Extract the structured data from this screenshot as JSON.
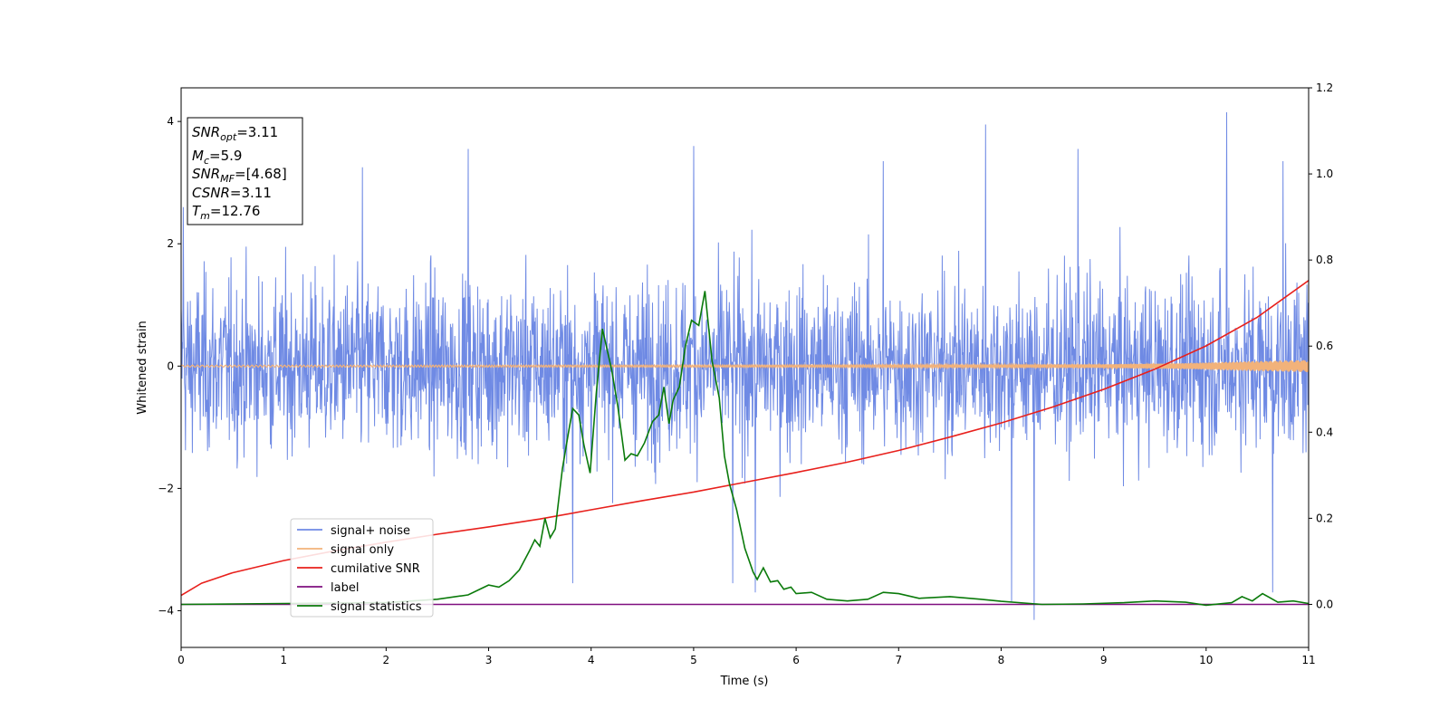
{
  "chart_data": {
    "type": "line",
    "xlabel": "Time (s)",
    "ylabel": "Whitened strain",
    "xlim": [
      0,
      11
    ],
    "ylim": [
      -4.6,
      4.55
    ],
    "y2lim": [
      -0.1,
      1.2
    ],
    "x_ticks": [
      "0",
      "1",
      "2",
      "3",
      "4",
      "5",
      "6",
      "7",
      "8",
      "9",
      "10",
      "11"
    ],
    "y_ticks": [
      "−4",
      "−2",
      "0",
      "2",
      "4"
    ],
    "y2_ticks": [
      "0.0",
      "0.2",
      "0.4",
      "0.6",
      "0.8",
      "1.0",
      "1.2"
    ],
    "grid": false,
    "legend_position": "lower-left",
    "annotation": {
      "lines": [
        {
          "sym": "SNR",
          "sub": "opt",
          "value": "=3.11"
        },
        {
          "sym": "M",
          "sub": "c",
          "value": "=5.9"
        },
        {
          "sym": "SNR",
          "sub": "MF",
          "value": "=[4.68]"
        },
        {
          "sym": "CSNR",
          "sub": "",
          "value": "=3.11"
        },
        {
          "sym": "T",
          "sub": "m",
          "value": "=12.76"
        }
      ]
    },
    "series": [
      {
        "name": "signal+ noise",
        "color": "#6f8ae4",
        "axis": "left",
        "kind": "noise",
        "typical_range": [
          -2.0,
          2.0
        ],
        "peaks": [
          {
            "x": 0.02,
            "y": 2.6
          },
          {
            "x": 1.77,
            "y": 3.25
          },
          {
            "x": 2.8,
            "y": 3.55
          },
          {
            "x": 5.0,
            "y": 3.6
          },
          {
            "x": 6.85,
            "y": 3.35
          },
          {
            "x": 7.85,
            "y": 3.95
          },
          {
            "x": 8.75,
            "y": 3.55
          },
          {
            "x": 10.2,
            "y": 4.15
          },
          {
            "x": 10.75,
            "y": 3.35
          },
          {
            "x": 3.82,
            "y": -3.55
          },
          {
            "x": 5.38,
            "y": -3.55
          },
          {
            "x": 5.6,
            "y": -3.7
          },
          {
            "x": 8.1,
            "y": -3.85
          },
          {
            "x": 8.32,
            "y": -4.15
          },
          {
            "x": 10.65,
            "y": -3.7
          }
        ]
      },
      {
        "name": "signal only",
        "color": "#f2b27a",
        "axis": "left",
        "kind": "chirp",
        "envelope": [
          [
            0,
            0.015
          ],
          [
            6,
            0.02
          ],
          [
            9,
            0.03
          ],
          [
            9.8,
            0.05
          ],
          [
            10.4,
            0.08
          ],
          [
            11,
            0.1
          ]
        ]
      },
      {
        "name": "cumilative SNR",
        "color": "#e8201c",
        "axis": "left",
        "kind": "line",
        "points": [
          [
            0,
            -3.75
          ],
          [
            0.2,
            -3.55
          ],
          [
            0.5,
            -3.38
          ],
          [
            1,
            -3.18
          ],
          [
            1.5,
            -3.02
          ],
          [
            2,
            -2.88
          ],
          [
            2.5,
            -2.75
          ],
          [
            3,
            -2.63
          ],
          [
            3.5,
            -2.5
          ],
          [
            4,
            -2.35
          ],
          [
            4.5,
            -2.2
          ],
          [
            5,
            -2.06
          ],
          [
            5.5,
            -1.9
          ],
          [
            6,
            -1.74
          ],
          [
            6.5,
            -1.57
          ],
          [
            7,
            -1.38
          ],
          [
            7.5,
            -1.16
          ],
          [
            8,
            -0.93
          ],
          [
            8.5,
            -0.67
          ],
          [
            9,
            -0.38
          ],
          [
            9.5,
            -0.05
          ],
          [
            10,
            0.33
          ],
          [
            10.5,
            0.8
          ],
          [
            11,
            1.4
          ]
        ]
      },
      {
        "name": "label",
        "color": "#7f0f7f",
        "axis": "right",
        "kind": "line",
        "points": [
          [
            0,
            0.0
          ],
          [
            11,
            0.0
          ]
        ]
      },
      {
        "name": "signal statistics",
        "color": "#0a7a0a",
        "axis": "right",
        "kind": "line",
        "points": [
          [
            0,
            0.0
          ],
          [
            0.5,
            0.001
          ],
          [
            1,
            0.002
          ],
          [
            1.5,
            0.003
          ],
          [
            2,
            0.004
          ],
          [
            2.5,
            0.012
          ],
          [
            2.8,
            0.022
          ],
          [
            3.0,
            0.045
          ],
          [
            3.1,
            0.04
          ],
          [
            3.2,
            0.055
          ],
          [
            3.3,
            0.08
          ],
          [
            3.4,
            0.125
          ],
          [
            3.45,
            0.15
          ],
          [
            3.5,
            0.135
          ],
          [
            3.55,
            0.2
          ],
          [
            3.6,
            0.155
          ],
          [
            3.65,
            0.175
          ],
          [
            3.72,
            0.315
          ],
          [
            3.78,
            0.4
          ],
          [
            3.82,
            0.455
          ],
          [
            3.88,
            0.44
          ],
          [
            3.93,
            0.37
          ],
          [
            3.99,
            0.305
          ],
          [
            4.05,
            0.49
          ],
          [
            4.11,
            0.64
          ],
          [
            4.2,
            0.545
          ],
          [
            4.26,
            0.46
          ],
          [
            4.33,
            0.335
          ],
          [
            4.39,
            0.35
          ],
          [
            4.45,
            0.345
          ],
          [
            4.52,
            0.375
          ],
          [
            4.6,
            0.425
          ],
          [
            4.66,
            0.44
          ],
          [
            4.71,
            0.505
          ],
          [
            4.76,
            0.42
          ],
          [
            4.8,
            0.475
          ],
          [
            4.86,
            0.505
          ],
          [
            4.92,
            0.6
          ],
          [
            4.98,
            0.66
          ],
          [
            5.05,
            0.648
          ],
          [
            5.11,
            0.728
          ],
          [
            5.18,
            0.565
          ],
          [
            5.25,
            0.48
          ],
          [
            5.3,
            0.345
          ],
          [
            5.35,
            0.28
          ],
          [
            5.42,
            0.22
          ],
          [
            5.5,
            0.13
          ],
          [
            5.58,
            0.075
          ],
          [
            5.62,
            0.058
          ],
          [
            5.68,
            0.085
          ],
          [
            5.75,
            0.052
          ],
          [
            5.82,
            0.055
          ],
          [
            5.88,
            0.035
          ],
          [
            5.95,
            0.04
          ],
          [
            6.0,
            0.025
          ],
          [
            6.15,
            0.028
          ],
          [
            6.3,
            0.012
          ],
          [
            6.5,
            0.008
          ],
          [
            6.7,
            0.012
          ],
          [
            6.85,
            0.028
          ],
          [
            7.0,
            0.025
          ],
          [
            7.2,
            0.014
          ],
          [
            7.5,
            0.018
          ],
          [
            7.8,
            0.012
          ],
          [
            8.0,
            0.007
          ],
          [
            8.4,
            0.0
          ],
          [
            8.8,
            0.001
          ],
          [
            9.2,
            0.004
          ],
          [
            9.5,
            0.008
          ],
          [
            9.8,
            0.005
          ],
          [
            10.0,
            -0.002
          ],
          [
            10.25,
            0.004
          ],
          [
            10.35,
            0.018
          ],
          [
            10.45,
            0.008
          ],
          [
            10.55,
            0.025
          ],
          [
            10.7,
            0.005
          ],
          [
            10.85,
            0.008
          ],
          [
            11,
            0.002
          ]
        ]
      }
    ]
  }
}
